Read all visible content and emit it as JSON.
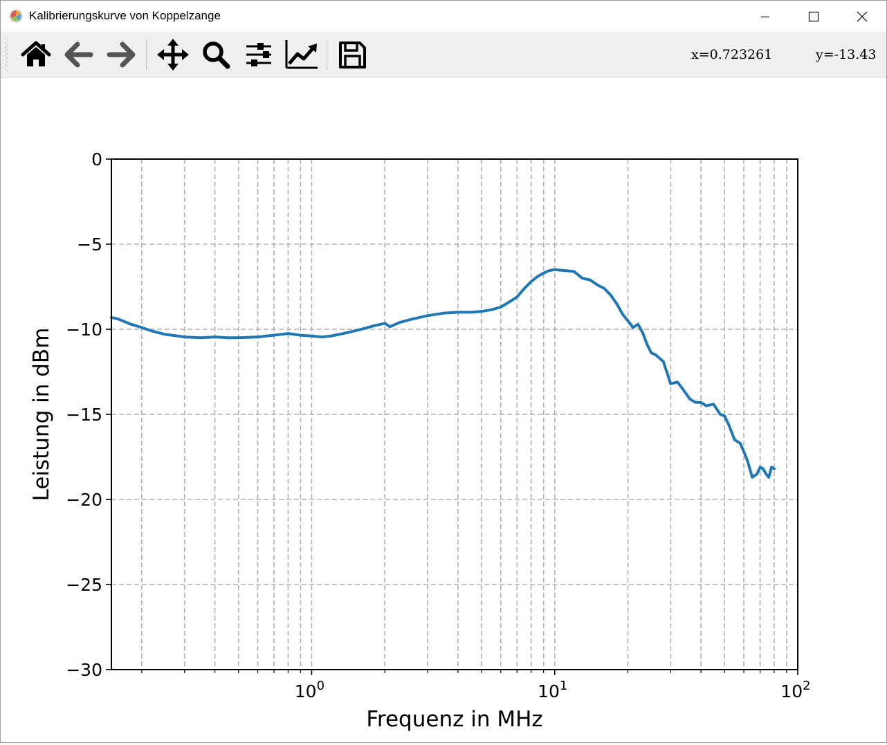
{
  "window": {
    "title": "Kalibrierungskurve von Koppelzange"
  },
  "toolbar": {
    "tools": [
      "home-icon",
      "back-icon",
      "forward-icon",
      "pan-icon",
      "zoom-icon",
      "configure-subplots-icon",
      "edit-axes-icon",
      "save-icon"
    ],
    "coord_x": "x=0.723261",
    "coord_y": "y=-13.43"
  },
  "colors": {
    "series": "#1f77b4",
    "grid": "#b0b0b0",
    "toolbar_bg": "#f0f0f0"
  },
  "chart_data": {
    "type": "line",
    "title": "",
    "xlabel": "Frequenz in MHz",
    "ylabel": "Leistung in dBm",
    "xscale": "log",
    "xlim": [
      0.15,
      100
    ],
    "ylim": [
      -30,
      0
    ],
    "yticks": [
      0,
      -5,
      -10,
      -15,
      -20,
      -25,
      -30
    ],
    "ytick_labels": [
      "0",
      "−5",
      "−10",
      "−15",
      "−20",
      "−25",
      "−30"
    ],
    "xticks": [
      1,
      10,
      100
    ],
    "xtick_labels": [
      [
        "10",
        "0"
      ],
      [
        "10",
        "1"
      ],
      [
        "10",
        "2"
      ]
    ],
    "grid": true,
    "grid_style": "dashed",
    "series": [
      {
        "color": "#1f77b4",
        "x": [
          0.15,
          0.16,
          0.18,
          0.2,
          0.22,
          0.25,
          0.3,
          0.35,
          0.4,
          0.45,
          0.5,
          0.6,
          0.7,
          0.8,
          0.9,
          1.0,
          1.1,
          1.2,
          1.4,
          1.6,
          1.8,
          2.0,
          2.1,
          2.3,
          2.6,
          3.0,
          3.5,
          4.0,
          4.5,
          5.0,
          5.5,
          6.0,
          6.5,
          7.0,
          7.5,
          8.0,
          8.5,
          9.0,
          9.5,
          10,
          11,
          12,
          13,
          14,
          15,
          16,
          17,
          18,
          19,
          20,
          21,
          22,
          23,
          24,
          25,
          26,
          28,
          30,
          32,
          34,
          36,
          38,
          40,
          42,
          45,
          48,
          50,
          52,
          55,
          58,
          60,
          62,
          65,
          68,
          70,
          72,
          74,
          76,
          78,
          80
        ],
        "y": [
          -9.3,
          -9.4,
          -9.7,
          -9.9,
          -10.1,
          -10.3,
          -10.45,
          -10.5,
          -10.45,
          -10.5,
          -10.5,
          -10.45,
          -10.35,
          -10.25,
          -10.35,
          -10.4,
          -10.45,
          -10.4,
          -10.2,
          -10.0,
          -9.8,
          -9.65,
          -9.85,
          -9.6,
          -9.4,
          -9.2,
          -9.05,
          -9.0,
          -9.0,
          -8.95,
          -8.85,
          -8.7,
          -8.4,
          -8.1,
          -7.6,
          -7.2,
          -6.9,
          -6.7,
          -6.55,
          -6.5,
          -6.55,
          -6.6,
          -7.0,
          -7.1,
          -7.4,
          -7.6,
          -8.0,
          -8.5,
          -9.1,
          -9.5,
          -9.9,
          -9.7,
          -10.2,
          -10.9,
          -11.4,
          -11.5,
          -11.9,
          -13.2,
          -13.1,
          -13.6,
          -14.1,
          -14.3,
          -14.3,
          -14.5,
          -14.4,
          -15.0,
          -15.1,
          -15.6,
          -16.5,
          -16.7,
          -17.2,
          -17.7,
          -18.7,
          -18.5,
          -18.1,
          -18.2,
          -18.5,
          -18.7,
          -18.1,
          -18.2
        ]
      }
    ]
  }
}
